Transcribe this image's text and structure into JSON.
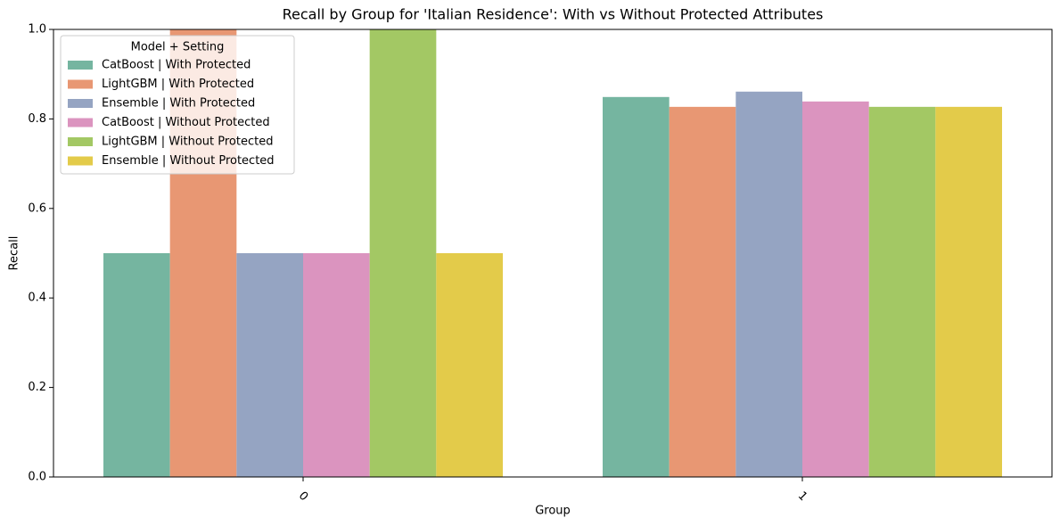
{
  "chart_data": {
    "type": "bar",
    "title": "Recall by Group for 'Italian Residence': With vs Without Protected Attributes",
    "x_label": "Group",
    "y_label": "Recall",
    "categories": [
      "0",
      "1"
    ],
    "series": [
      {
        "name": "CatBoost | With Protected",
        "color": "#75b5a0",
        "values": [
          0.5,
          0.849
        ]
      },
      {
        "name": "LightGBM | With Protected",
        "color": "#e89773",
        "values": [
          1.0,
          0.827
        ]
      },
      {
        "name": "Ensemble | With Protected",
        "color": "#95a4c2",
        "values": [
          0.5,
          0.861
        ]
      },
      {
        "name": "CatBoost | Without Protected",
        "color": "#db94bf",
        "values": [
          0.5,
          0.839
        ]
      },
      {
        "name": "LightGBM | Without Protected",
        "color": "#a3c864",
        "values": [
          1.0,
          0.827
        ]
      },
      {
        "name": "Ensemble | Without Protected",
        "color": "#e3cb4a",
        "values": [
          0.5,
          0.827
        ]
      }
    ],
    "legend_title": "Model + Setting",
    "legend_corner": "upper left",
    "ylim": [
      0,
      1
    ],
    "yticks": [
      {
        "value": 0,
        "label": "0.0"
      },
      0.2,
      0.4,
      0.6,
      0.8,
      {
        "value": 1,
        "label": "1.0"
      }
    ],
    "grid": false
  }
}
